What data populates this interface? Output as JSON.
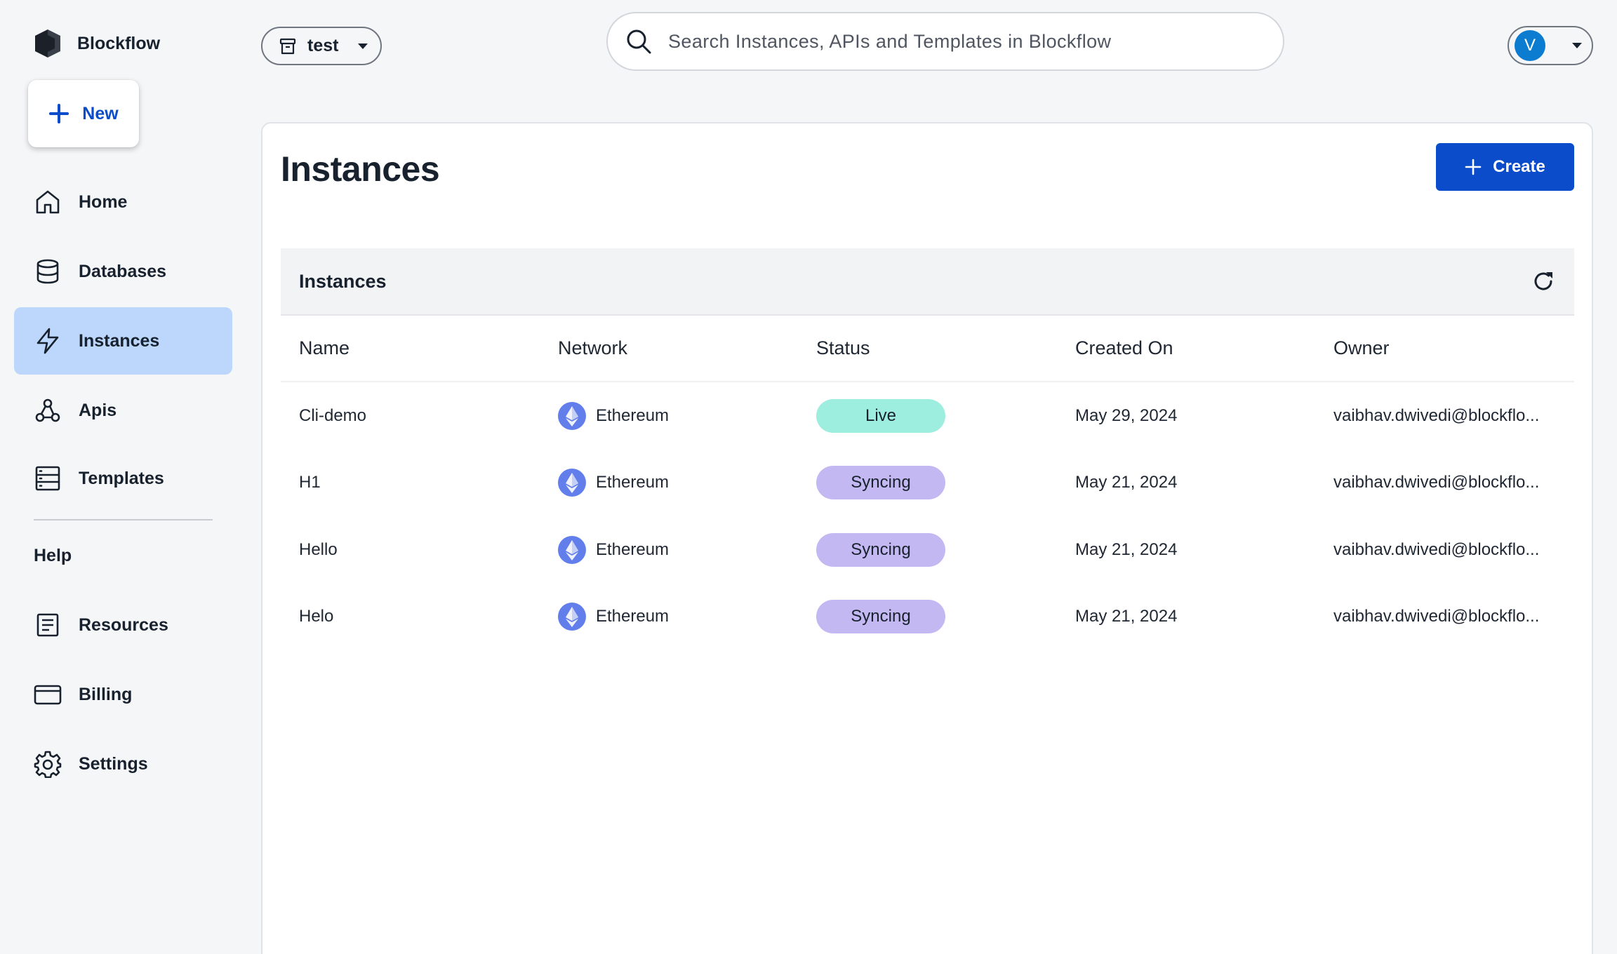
{
  "app": {
    "name": "Blockflow"
  },
  "sidebar": {
    "new_label": "New",
    "items": [
      {
        "label": "Home",
        "icon": "home-icon"
      },
      {
        "label": "Databases",
        "icon": "database-icon"
      },
      {
        "label": "Instances",
        "icon": "lightning-icon",
        "active": true
      },
      {
        "label": "Apis",
        "icon": "webhook-icon"
      },
      {
        "label": "Templates",
        "icon": "server-icon"
      }
    ],
    "help_label": "Help",
    "help_items": [
      {
        "label": "Resources",
        "icon": "document-icon"
      },
      {
        "label": "Billing",
        "icon": "credit-card-icon"
      },
      {
        "label": "Settings",
        "icon": "gear-icon"
      }
    ]
  },
  "topbar": {
    "project": "test",
    "search_placeholder": "Search Instances, APIs and Templates in Blockflow",
    "avatar_initial": "V"
  },
  "main": {
    "title": "Instances",
    "create_label": "Create",
    "table": {
      "title": "Instances",
      "columns": [
        "Name",
        "Network",
        "Status",
        "Created On",
        "Owner"
      ],
      "rows": [
        {
          "name": "Cli-demo",
          "network": "Ethereum",
          "status": "Live",
          "created": "May 29, 2024",
          "owner": "vaibhav.dwivedi@blockflo..."
        },
        {
          "name": "H1",
          "network": "Ethereum",
          "status": "Syncing",
          "created": "May 21, 2024",
          "owner": "vaibhav.dwivedi@blockflo..."
        },
        {
          "name": "Hello",
          "network": "Ethereum",
          "status": "Syncing",
          "created": "May 21, 2024",
          "owner": "vaibhav.dwivedi@blockflo..."
        },
        {
          "name": "Helo",
          "network": "Ethereum",
          "status": "Syncing",
          "created": "May 21, 2024",
          "owner": "vaibhav.dwivedi@blockflo..."
        }
      ]
    }
  },
  "colors": {
    "accent": "#0a4cc9",
    "active_nav": "#bcd7fb",
    "status_live": "#9eeee0",
    "status_syncing": "#c3b8f2",
    "ethereum": "#627eea",
    "avatar": "#0b7cd0"
  }
}
